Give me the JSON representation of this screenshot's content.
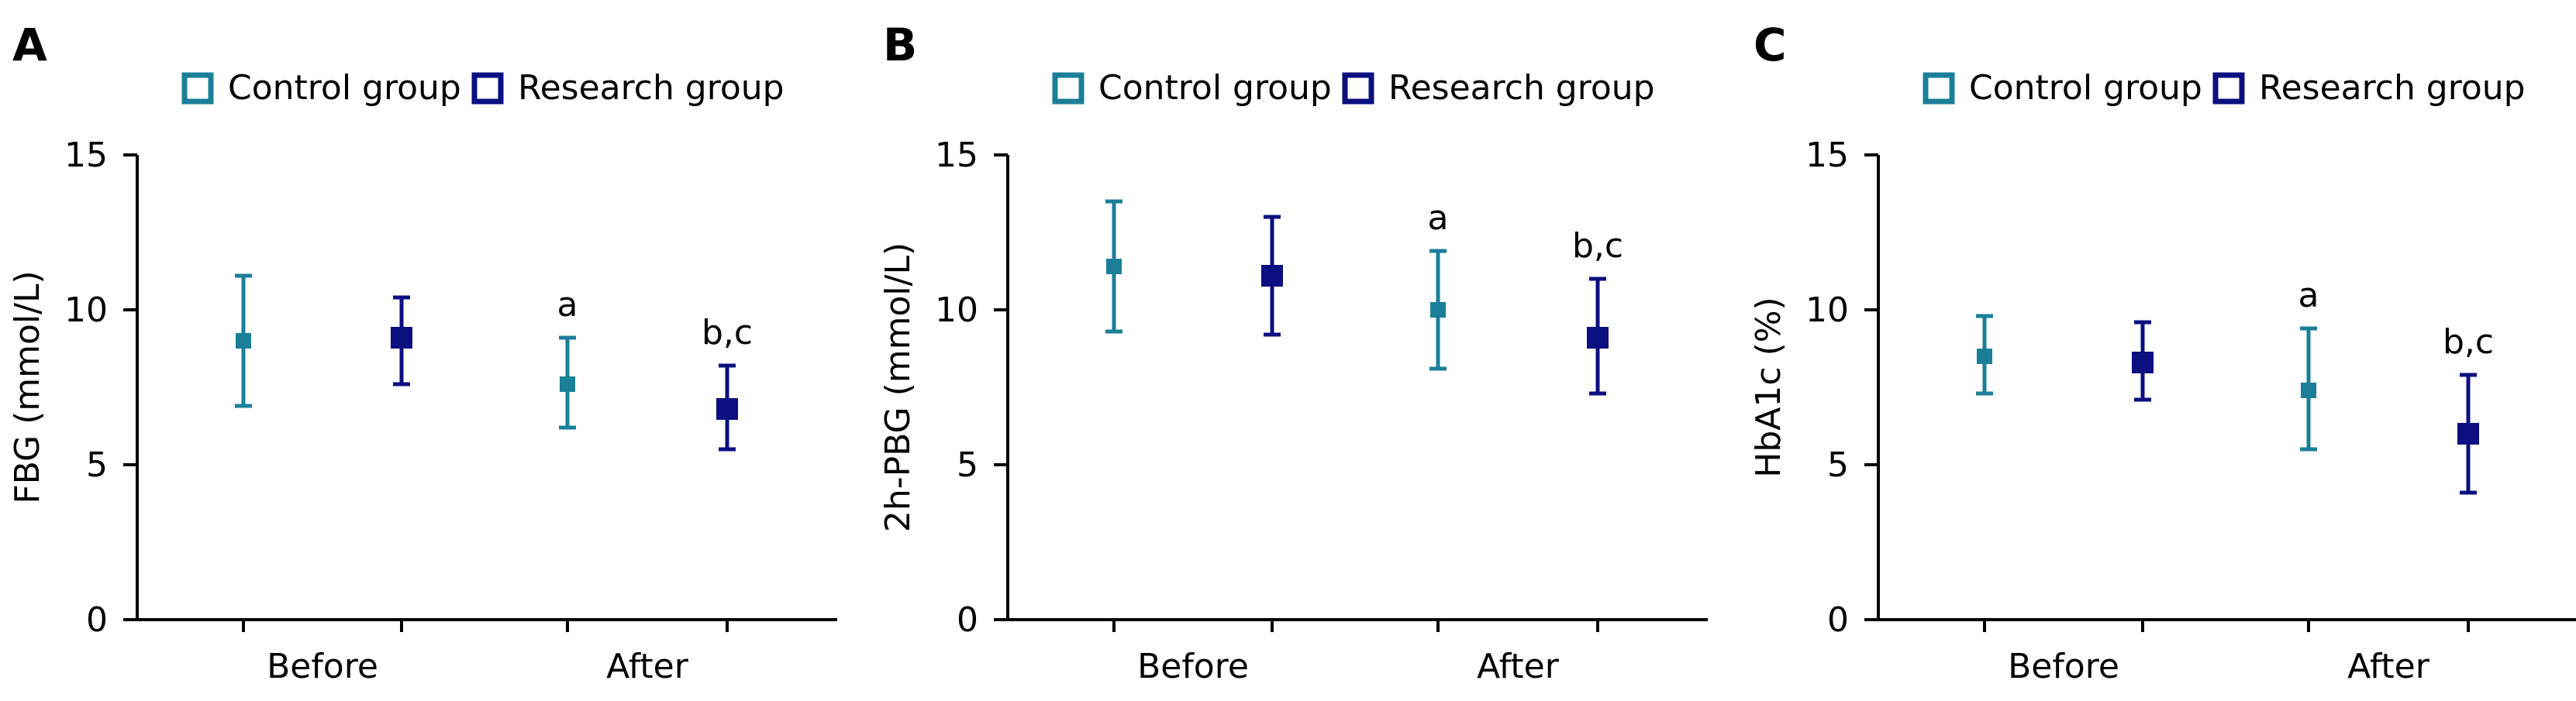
{
  "colors": {
    "control": "#1B7F99",
    "research": "#0B0F80",
    "axis": "#000000"
  },
  "chart_data": [
    {
      "type": "scatter",
      "panel_label": "A",
      "ylabel": "FBG (mmol/L)",
      "ylim": [
        0,
        15
      ],
      "yticks": [
        0,
        5,
        10,
        15
      ],
      "categories": [
        "Before",
        "After"
      ],
      "legend": {
        "position": "top",
        "entries": [
          "Control group",
          "Research group"
        ]
      },
      "series": [
        {
          "name": "Control group",
          "values": [
            9.0,
            7.6
          ],
          "error_low": [
            6.9,
            6.2
          ],
          "error_high": [
            11.1,
            9.1
          ]
        },
        {
          "name": "Research group",
          "values": [
            9.1,
            6.8
          ],
          "error_low": [
            7.6,
            5.5
          ],
          "error_high": [
            10.4,
            8.2
          ]
        }
      ],
      "annotations": [
        {
          "text": "a",
          "series": 0,
          "category": 1
        },
        {
          "text": "b,c",
          "series": 1,
          "category": 1
        }
      ]
    },
    {
      "type": "scatter",
      "panel_label": "B",
      "ylabel": "2h-PBG (mmol/L)",
      "ylim": [
        0,
        15
      ],
      "yticks": [
        0,
        5,
        10,
        15
      ],
      "categories": [
        "Before",
        "After"
      ],
      "legend": {
        "position": "top",
        "entries": [
          "Control group",
          "Research group"
        ]
      },
      "series": [
        {
          "name": "Control group",
          "values": [
            11.4,
            10.0
          ],
          "error_low": [
            9.3,
            8.1
          ],
          "error_high": [
            13.5,
            11.9
          ]
        },
        {
          "name": "Research group",
          "values": [
            11.1,
            9.1
          ],
          "error_low": [
            9.2,
            7.3
          ],
          "error_high": [
            13.0,
            11.0
          ]
        }
      ],
      "annotations": [
        {
          "text": "a",
          "series": 0,
          "category": 1
        },
        {
          "text": "b,c",
          "series": 1,
          "category": 1
        }
      ]
    },
    {
      "type": "scatter",
      "panel_label": "C",
      "ylabel": "HbA1c (%)",
      "ylim": [
        0,
        15
      ],
      "yticks": [
        0,
        5,
        10,
        15
      ],
      "categories": [
        "Before",
        "After"
      ],
      "legend": {
        "position": "top",
        "entries": [
          "Control group",
          "Research group"
        ]
      },
      "series": [
        {
          "name": "Control group",
          "values": [
            8.5,
            7.4
          ],
          "error_low": [
            7.3,
            5.5
          ],
          "error_high": [
            9.8,
            9.4
          ]
        },
        {
          "name": "Research group",
          "values": [
            8.3,
            6.0
          ],
          "error_low": [
            7.1,
            4.1
          ],
          "error_high": [
            9.6,
            7.9
          ]
        }
      ],
      "annotations": [
        {
          "text": "a",
          "series": 0,
          "category": 1
        },
        {
          "text": "b,c",
          "series": 1,
          "category": 1
        }
      ]
    }
  ]
}
